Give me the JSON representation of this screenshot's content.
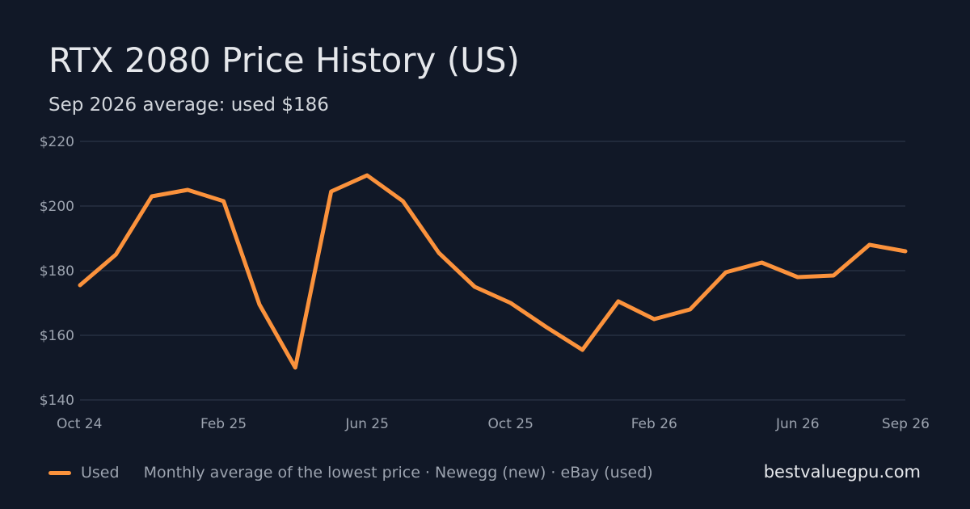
{
  "header": {
    "title": "RTX 2080 Price History (US)",
    "subtitle": "Sep 2026 average: used $186"
  },
  "footer": {
    "legend_label": "Used",
    "note": "Monthly average of the lowest price · Newegg (new) · eBay (used)",
    "brand": "bestvaluegpu.com"
  },
  "colors": {
    "background": "#111827",
    "grid": "#273142",
    "tick_text": "#9ca3af",
    "used": "#fb923c"
  },
  "chart_data": {
    "type": "line",
    "title": "RTX 2080 Price History (US)",
    "x": [
      "Oct 24",
      "Nov 24",
      "Dec 24",
      "Jan 25",
      "Feb 25",
      "Mar 25",
      "Apr 25",
      "May 25",
      "Jun 25",
      "Jul 25",
      "Aug 25",
      "Sep 25",
      "Oct 25",
      "Nov 25",
      "Dec 25",
      "Jan 26",
      "Feb 26",
      "Mar 26",
      "Apr 26",
      "May 26",
      "Jun 26",
      "Jul 26",
      "Aug 26",
      "Sep 26"
    ],
    "series": [
      {
        "name": "Used",
        "values": [
          175.5,
          185,
          203,
          205,
          201.5,
          169.5,
          150,
          204.5,
          209.5,
          201.5,
          185.5,
          175,
          170,
          162.5,
          155.5,
          170.5,
          165,
          168,
          179.5,
          182.5,
          178,
          178.5,
          188,
          186
        ]
      }
    ],
    "yticks": [
      "$220",
      "$200",
      "$180",
      "$160",
      "$140"
    ],
    "ytick_values": [
      220,
      200,
      180,
      160,
      140
    ],
    "xticks": [
      "Oct 24",
      "Feb 25",
      "Jun 25",
      "Oct 25",
      "Feb 26",
      "Jun 26",
      "Sep 26"
    ],
    "ylim": [
      140,
      220
    ],
    "grid": true,
    "legend_position": "bottom-left"
  }
}
